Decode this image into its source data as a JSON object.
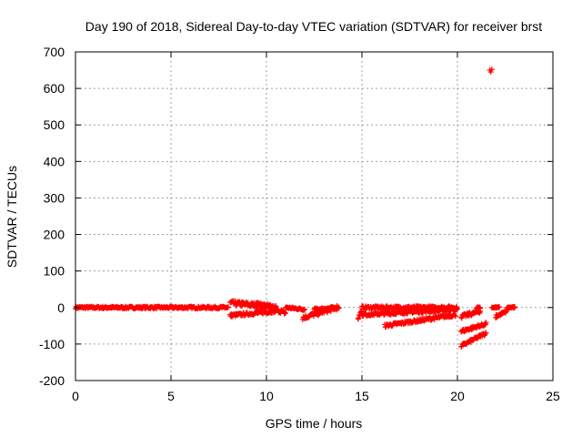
{
  "chart_data": {
    "type": "scatter",
    "title": "Day 190 of 2018, Sidereal Day-to-day VTEC variation (SDTVAR) for receiver brst",
    "xlabel": "GPS time / hours",
    "ylabel": "SDTVAR / TECUs",
    "xlim": [
      0,
      25
    ],
    "ylim": [
      -200,
      700
    ],
    "xticks": [
      "0",
      "5",
      "10",
      "15",
      "20",
      "25"
    ],
    "yticks": [
      "-200",
      "-100",
      "0",
      "100",
      "200",
      "300",
      "400",
      "500",
      "600",
      "700"
    ],
    "grid": true,
    "marker": "plus",
    "color": "#ff0000",
    "segments": [
      {
        "x0": 0.0,
        "y0": 0,
        "x1": 8.0,
        "y1": 0,
        "spread": 6
      },
      {
        "x0": 8.1,
        "y0": 12,
        "x1": 10.5,
        "y1": 2,
        "spread": 14
      },
      {
        "x0": 8.1,
        "y0": -22,
        "x1": 10.5,
        "y1": -10,
        "spread": 8
      },
      {
        "x0": 9.5,
        "y0": 10,
        "x1": 11.0,
        "y1": -15,
        "spread": 10
      },
      {
        "x0": 11.0,
        "y0": 0,
        "x1": 12.0,
        "y1": -5,
        "spread": 6
      },
      {
        "x0": 11.9,
        "y0": -28,
        "x1": 13.7,
        "y1": 0,
        "spread": 12
      },
      {
        "x0": 12.5,
        "y0": -5,
        "x1": 13.8,
        "y1": 0,
        "spread": 6
      },
      {
        "x0": 14.8,
        "y0": -30,
        "x1": 15.0,
        "y1": -5,
        "spread": 6
      },
      {
        "x0": 15.0,
        "y0": 0,
        "x1": 20.0,
        "y1": 0,
        "spread": 8
      },
      {
        "x0": 15.0,
        "y0": -20,
        "x1": 20.0,
        "y1": -5,
        "spread": 8
      },
      {
        "x0": 16.2,
        "y0": -50,
        "x1": 19.9,
        "y1": -20,
        "spread": 8
      },
      {
        "x0": 20.2,
        "y0": -25,
        "x1": 21.2,
        "y1": -10,
        "spread": 10
      },
      {
        "x0": 20.2,
        "y0": -65,
        "x1": 21.5,
        "y1": -45,
        "spread": 8
      },
      {
        "x0": 20.2,
        "y0": -105,
        "x1": 21.5,
        "y1": -70,
        "spread": 8
      },
      {
        "x0": 21.0,
        "y0": 0,
        "x1": 21.2,
        "y1": 0,
        "spread": 4
      },
      {
        "x0": 21.8,
        "y0": 0,
        "x1": 22.2,
        "y1": 0,
        "spread": 4
      },
      {
        "x0": 22.0,
        "y0": -25,
        "x1": 22.6,
        "y1": -10,
        "spread": 8
      },
      {
        "x0": 22.6,
        "y0": 0,
        "x1": 23.0,
        "y1": 0,
        "spread": 4
      }
    ],
    "points": [
      {
        "x": 21.7,
        "y": 650
      },
      {
        "x": 21.75,
        "y": 645
      },
      {
        "x": 21.8,
        "y": 652
      },
      {
        "x": 0.1,
        "y": 0
      },
      {
        "x": 23.0,
        "y": 0
      }
    ]
  }
}
